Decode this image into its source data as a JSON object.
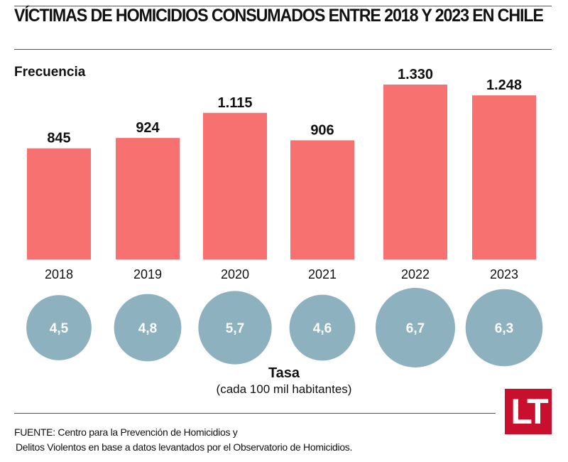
{
  "chart_data": {
    "type": "bar",
    "title": "VÍCTIMAS DE HOMICIDIOS CONSUMADOS ENTRE 2018 Y 2023 EN CHILE",
    "ylabel": "Frecuencia",
    "xlabel": "",
    "categories": [
      "2018",
      "2019",
      "2020",
      "2021",
      "2022",
      "2023"
    ],
    "values": [
      845,
      924,
      1115,
      906,
      1330,
      1248
    ],
    "value_labels": [
      "845",
      "924",
      "1.115",
      "906",
      "1.330",
      "1.248"
    ],
    "ylim": [
      0,
      1400
    ],
    "grid": false,
    "bar_color": "#f87171",
    "secondary": {
      "type": "bubble",
      "title": "Tasa",
      "subtitle": "(cada 100 mil habitantes)",
      "values": [
        4.5,
        4.8,
        5.7,
        4.6,
        6.7,
        6.3
      ],
      "value_labels": [
        "4,5",
        "4,8",
        "5,7",
        "4,6",
        "6,7",
        "6,3"
      ],
      "color": "#8eb1bf"
    }
  },
  "footer": {
    "source_line1": "FUENTE: Centro para la Prevención de Homicidios y",
    "source_line2": "Delitos Violentos en base a datos levantados por el Observatorio de Homicidios.",
    "logo_text": "LT",
    "logo_color": "#c8102e"
  }
}
